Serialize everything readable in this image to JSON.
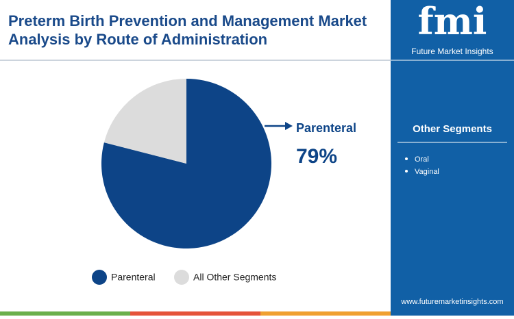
{
  "chart_data": {
    "type": "pie",
    "title": "Preterm Birth Prevention and Management Market Analysis by Route of Administration",
    "categories": [
      "Parenteral",
      "All Other Segments"
    ],
    "values": [
      79,
      21
    ],
    "value_labels": [
      "79%",
      null
    ],
    "colors": [
      "#0d4487",
      "#dcdcdc"
    ]
  },
  "brand": {
    "logo": "fmi",
    "name": "Future Market Insights",
    "url": "www.futuremarketinsights.com"
  },
  "sidebar": {
    "title": "Other Segments",
    "items": [
      "Oral",
      "Vaginal"
    ]
  }
}
